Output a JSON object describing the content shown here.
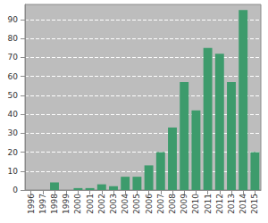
{
  "chart_data": {
    "type": "bar",
    "categories": [
      "1996",
      "1997",
      "1998",
      "1999",
      "2000",
      "2001",
      "2002",
      "2003",
      "2004",
      "2005",
      "2006",
      "2007",
      "2008",
      "2009",
      "2010",
      "2011",
      "2012",
      "2013",
      "2014",
      "2015"
    ],
    "values": [
      0,
      0,
      4,
      0,
      1,
      1,
      3,
      2,
      7,
      7,
      13,
      20,
      33,
      57,
      42,
      75,
      72,
      57,
      95,
      20
    ],
    "color": "#3d9b6c",
    "ylim": [
      0,
      98
    ],
    "yticks": [
      0,
      10,
      20,
      30,
      40,
      50,
      60,
      70,
      80,
      90
    ],
    "grid": true
  }
}
